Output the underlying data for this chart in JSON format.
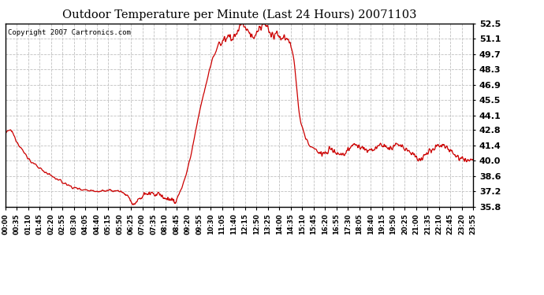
{
  "title": "Outdoor Temperature per Minute (Last 24 Hours) 20071103",
  "copyright_text": "Copyright 2007 Cartronics.com",
  "line_color": "#cc0000",
  "background_color": "#ffffff",
  "grid_color": "#c0c0c0",
  "y_ticks": [
    35.8,
    37.2,
    38.6,
    40.0,
    41.4,
    42.8,
    44.1,
    45.5,
    46.9,
    48.3,
    49.7,
    51.1,
    52.5
  ],
  "x_tick_labels": [
    "00:00",
    "00:35",
    "01:10",
    "01:45",
    "02:20",
    "02:55",
    "03:30",
    "04:05",
    "04:40",
    "05:15",
    "05:50",
    "06:25",
    "07:00",
    "07:35",
    "08:10",
    "08:45",
    "09:20",
    "09:55",
    "10:30",
    "11:05",
    "11:40",
    "12:15",
    "12:50",
    "13:25",
    "14:00",
    "14:35",
    "15:10",
    "15:45",
    "16:20",
    "16:55",
    "17:30",
    "18:05",
    "18:40",
    "19:15",
    "19:50",
    "20:25",
    "21:00",
    "21:35",
    "22:10",
    "22:45",
    "23:20",
    "23:55"
  ],
  "ylim": [
    35.8,
    52.5
  ],
  "xlim_minutes": [
    0,
    1435
  ],
  "control_points": [
    [
      0,
      42.5
    ],
    [
      15,
      42.8
    ],
    [
      20,
      42.6
    ],
    [
      30,
      42.0
    ],
    [
      50,
      41.0
    ],
    [
      80,
      39.8
    ],
    [
      110,
      39.2
    ],
    [
      140,
      38.6
    ],
    [
      175,
      38.0
    ],
    [
      210,
      37.5
    ],
    [
      250,
      37.3
    ],
    [
      290,
      37.2
    ],
    [
      320,
      37.25
    ],
    [
      350,
      37.2
    ],
    [
      375,
      36.8
    ],
    [
      385,
      36.2
    ],
    [
      390,
      35.9
    ],
    [
      400,
      36.1
    ],
    [
      410,
      36.5
    ],
    [
      420,
      36.8
    ],
    [
      430,
      37.0
    ],
    [
      440,
      36.9
    ],
    [
      450,
      37.1
    ],
    [
      460,
      36.8
    ],
    [
      470,
      37.0
    ],
    [
      480,
      36.7
    ],
    [
      490,
      36.5
    ],
    [
      500,
      36.4
    ],
    [
      510,
      36.5
    ],
    [
      515,
      36.3
    ],
    [
      520,
      36.2
    ],
    [
      525,
      36.4
    ],
    [
      530,
      36.8
    ],
    [
      540,
      37.5
    ],
    [
      555,
      38.8
    ],
    [
      565,
      40.0
    ],
    [
      575,
      41.5
    ],
    [
      585,
      43.0
    ],
    [
      595,
      44.5
    ],
    [
      605,
      45.8
    ],
    [
      615,
      47.0
    ],
    [
      625,
      48.2
    ],
    [
      635,
      49.3
    ],
    [
      645,
      50.0
    ],
    [
      655,
      50.8
    ],
    [
      660,
      50.5
    ],
    [
      665,
      51.0
    ],
    [
      670,
      51.3
    ],
    [
      675,
      50.8
    ],
    [
      680,
      51.2
    ],
    [
      685,
      51.5
    ],
    [
      690,
      51.3
    ],
    [
      695,
      51.0
    ],
    [
      700,
      51.2
    ],
    [
      705,
      51.5
    ],
    [
      710,
      51.8
    ],
    [
      715,
      52.0
    ],
    [
      720,
      52.3
    ],
    [
      725,
      52.5
    ],
    [
      730,
      52.4
    ],
    [
      735,
      52.2
    ],
    [
      740,
      52.0
    ],
    [
      745,
      51.8
    ],
    [
      750,
      51.5
    ],
    [
      755,
      51.3
    ],
    [
      760,
      51.1
    ],
    [
      765,
      51.3
    ],
    [
      770,
      51.5
    ],
    [
      775,
      51.8
    ],
    [
      780,
      52.0
    ],
    [
      785,
      52.3
    ],
    [
      790,
      52.5
    ],
    [
      795,
      52.4
    ],
    [
      800,
      52.2
    ],
    [
      805,
      52.0
    ],
    [
      810,
      51.7
    ],
    [
      815,
      51.5
    ],
    [
      820,
      51.3
    ],
    [
      825,
      51.5
    ],
    [
      830,
      51.6
    ],
    [
      835,
      51.4
    ],
    [
      840,
      51.2
    ],
    [
      845,
      51.0
    ],
    [
      850,
      51.2
    ],
    [
      855,
      51.3
    ],
    [
      860,
      51.1
    ],
    [
      865,
      51.0
    ],
    [
      870,
      50.8
    ],
    [
      875,
      50.5
    ],
    [
      880,
      50.0
    ],
    [
      885,
      49.0
    ],
    [
      890,
      47.5
    ],
    [
      895,
      46.0
    ],
    [
      900,
      44.5
    ],
    [
      905,
      43.5
    ],
    [
      910,
      43.0
    ],
    [
      915,
      42.5
    ],
    [
      920,
      42.0
    ],
    [
      925,
      41.8
    ],
    [
      930,
      41.5
    ],
    [
      940,
      41.2
    ],
    [
      950,
      41.0
    ],
    [
      960,
      40.8
    ],
    [
      970,
      40.6
    ],
    [
      980,
      40.7
    ],
    [
      990,
      40.9
    ],
    [
      1000,
      41.0
    ],
    [
      1010,
      40.8
    ],
    [
      1020,
      40.6
    ],
    [
      1030,
      40.5
    ],
    [
      1040,
      40.7
    ],
    [
      1050,
      41.0
    ],
    [
      1060,
      41.3
    ],
    [
      1070,
      41.5
    ],
    [
      1080,
      41.4
    ],
    [
      1090,
      41.2
    ],
    [
      1100,
      41.0
    ],
    [
      1110,
      40.8
    ],
    [
      1120,
      40.9
    ],
    [
      1130,
      41.0
    ],
    [
      1140,
      41.3
    ],
    [
      1150,
      41.5
    ],
    [
      1160,
      41.4
    ],
    [
      1170,
      41.2
    ],
    [
      1180,
      41.0
    ],
    [
      1190,
      41.3
    ],
    [
      1200,
      41.5
    ],
    [
      1210,
      41.4
    ],
    [
      1220,
      41.2
    ],
    [
      1230,
      41.0
    ],
    [
      1240,
      40.8
    ],
    [
      1250,
      40.5
    ],
    [
      1260,
      40.2
    ],
    [
      1270,
      40.0
    ],
    [
      1280,
      40.3
    ],
    [
      1290,
      40.5
    ],
    [
      1300,
      40.8
    ],
    [
      1310,
      41.0
    ],
    [
      1320,
      41.3
    ],
    [
      1330,
      41.4
    ],
    [
      1340,
      41.5
    ],
    [
      1350,
      41.3
    ],
    [
      1360,
      41.0
    ],
    [
      1370,
      40.8
    ],
    [
      1380,
      40.5
    ],
    [
      1390,
      40.3
    ],
    [
      1400,
      40.2
    ],
    [
      1410,
      40.1
    ],
    [
      1420,
      40.0
    ],
    [
      1430,
      40.1
    ],
    [
      1435,
      40.0
    ]
  ]
}
